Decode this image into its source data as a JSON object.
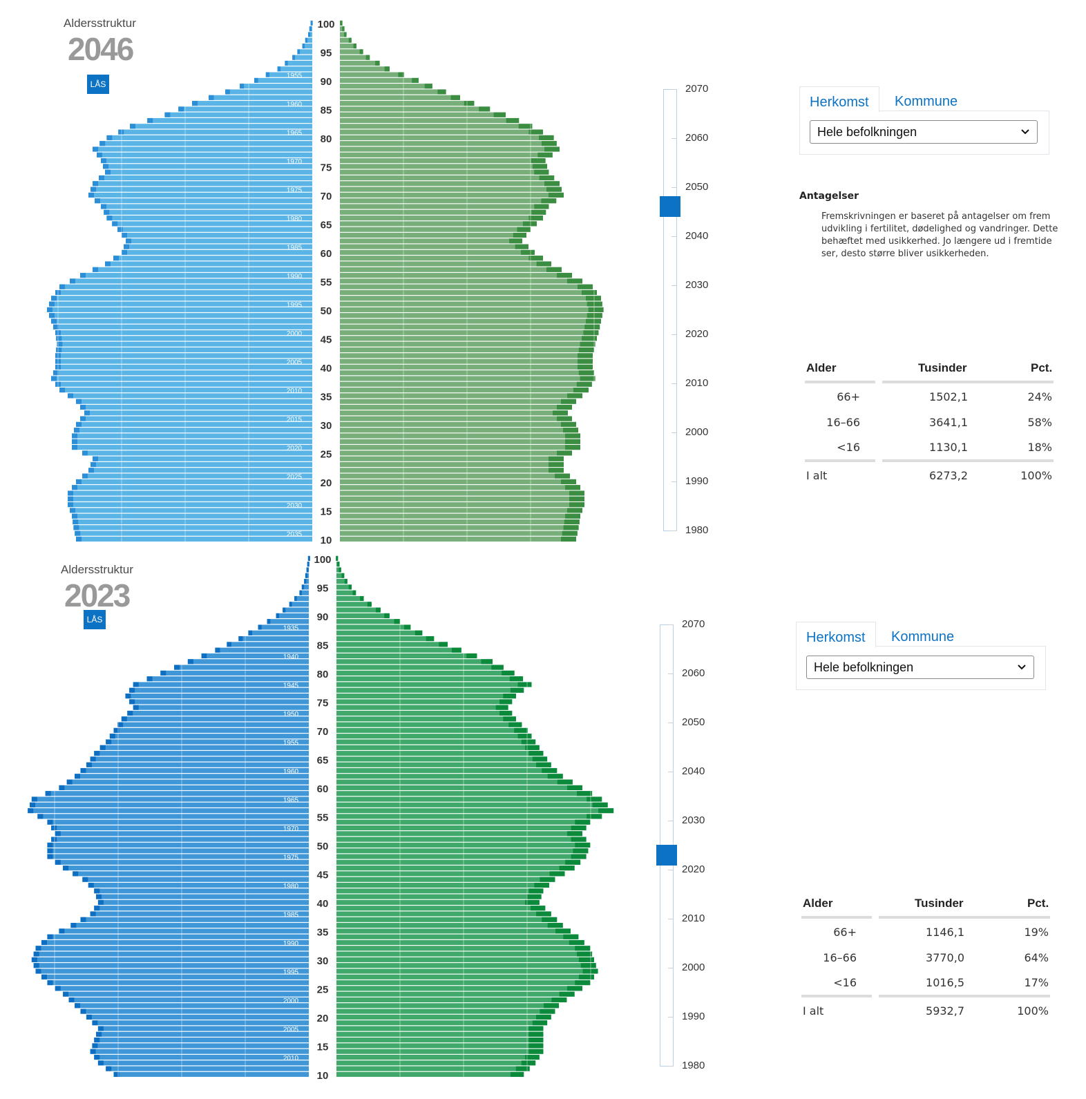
{
  "panels": [
    {
      "id": "top",
      "subtitle": "Aldersstruktur",
      "year": "2046",
      "lock_label": "LÅS",
      "age_labels": [
        "100",
        "95",
        "90",
        "85",
        "80",
        "75",
        "70",
        "65",
        "60",
        "55",
        "50",
        "45",
        "40",
        "35",
        "30",
        "25",
        "20",
        "15",
        "10"
      ],
      "birth_year_labels": [
        "1950",
        "1955",
        "1960",
        "1965",
        "1970",
        "1975",
        "1980",
        "1985",
        "1990",
        "1995",
        "2000",
        "2005",
        "2010",
        "2015",
        "2020",
        "2025",
        "2030",
        "2035"
      ],
      "slider": {
        "ticks": [
          "2070",
          "2060",
          "2050",
          "2040",
          "2030",
          "2020",
          "2010",
          "2000",
          "1990",
          "1980"
        ],
        "value": 2046
      },
      "tabs": {
        "labels": [
          "Herkomst",
          "Kommune"
        ],
        "active": "Herkomst",
        "select_value": "Hele befolkningen"
      },
      "assumptions": {
        "title": "Antagelser",
        "lines": [
          "Fremskrivningen er baseret på antagelser om frem",
          "udvikling i fertilitet, dødelighed og vandringer. Dette",
          "behæftet med usikkerhed. Jo længere ud i fremtide",
          "ser, desto større bliver usikkerheden."
        ]
      },
      "table": {
        "headers": [
          "Alder",
          "Tusinder",
          "Pct."
        ],
        "rows": [
          {
            "age": "66+",
            "thousands": "1502,1",
            "pct": "24%"
          },
          {
            "age": "16–66",
            "thousands": "3641,1",
            "pct": "58%"
          },
          {
            "age": "<16",
            "thousands": "1130,1",
            "pct": "18%"
          }
        ],
        "total": {
          "age": "I alt",
          "thousands": "6273,2",
          "pct": "100%"
        }
      },
      "colors": {
        "men": "#5ab4e5",
        "men_dark": "#2b8ed6",
        "women": "#77ae79",
        "women_dark": "#3b8d41"
      }
    },
    {
      "id": "bottom",
      "subtitle": "Aldersstruktur",
      "year": "2023",
      "lock_label": "LÅS",
      "age_labels": [
        "100",
        "95",
        "90",
        "85",
        "80",
        "75",
        "70",
        "65",
        "60",
        "55",
        "50",
        "45",
        "40",
        "35",
        "30",
        "25",
        "20",
        "15",
        "10"
      ],
      "birth_year_labels": [
        "1935",
        "1940",
        "1945",
        "1950",
        "1955",
        "1960",
        "1965",
        "1970",
        "1975",
        "1980",
        "1985",
        "1990",
        "1995",
        "2000",
        "2005",
        "2010"
      ],
      "slider": {
        "ticks": [
          "2070",
          "2060",
          "2050",
          "2040",
          "2030",
          "2020",
          "2010",
          "2000",
          "1990",
          "1980"
        ],
        "value": 2023
      },
      "tabs": {
        "labels": [
          "Herkomst",
          "Kommune"
        ],
        "active": "Herkomst",
        "select_value": "Hele befolkningen"
      },
      "table": {
        "headers": [
          "Alder",
          "Tusinder",
          "Pct."
        ],
        "rows": [
          {
            "age": "66+",
            "thousands": "1146,1",
            "pct": "19%"
          },
          {
            "age": "16–66",
            "thousands": "3770,0",
            "pct": "64%"
          },
          {
            "age": "<16",
            "thousands": "1016,5",
            "pct": "17%"
          }
        ],
        "total": {
          "age": "I alt",
          "thousands": "5932,7",
          "pct": "100%"
        }
      },
      "colors": {
        "men": "#3f97d8",
        "men_dark": "#0e6fc2",
        "women": "#40a86a",
        "women_dark": "#0a8a3a"
      }
    }
  ],
  "chart_data": [
    {
      "type": "bar",
      "orientation": "horizontal-pyramid",
      "title": "Aldersstruktur 2046",
      "ages": [
        100,
        98,
        96,
        94,
        92,
        90,
        88,
        86,
        84,
        82,
        80,
        78,
        76,
        74,
        72,
        70,
        68,
        66,
        64,
        62,
        60,
        58,
        56,
        54,
        52,
        50,
        48,
        46,
        44,
        42,
        40,
        38,
        36,
        34,
        32,
        30,
        28,
        26,
        24,
        22,
        20,
        18,
        16,
        14,
        12,
        10
      ],
      "men": [
        0.2,
        0.5,
        1.2,
        2.4,
        4.2,
        7.0,
        10.5,
        14.5,
        17.8,
        22.0,
        24.8,
        26.5,
        25.5,
        25.0,
        26.5,
        27.0,
        25.5,
        24.8,
        23.5,
        22.5,
        23.0,
        25.0,
        28.0,
        30.5,
        31.5,
        32.0,
        31.5,
        31.0,
        30.8,
        31.0,
        31.0,
        31.5,
        30.5,
        28.5,
        27.5,
        28.5,
        29.0,
        29.0,
        26.5,
        27.0,
        28.5,
        29.5,
        29.5,
        29.0,
        28.8,
        28.5
      ],
      "women": [
        0.3,
        0.8,
        2.0,
        3.6,
        6.0,
        9.5,
        12.8,
        16.2,
        20.0,
        23.2,
        25.8,
        26.5,
        24.8,
        25.2,
        26.5,
        27.0,
        25.2,
        24.5,
        23.0,
        22.0,
        23.5,
        25.5,
        28.0,
        30.5,
        31.5,
        31.8,
        31.5,
        31.2,
        30.8,
        30.5,
        30.5,
        30.8,
        30.0,
        28.5,
        27.5,
        28.5,
        29.0,
        29.0,
        27.0,
        27.0,
        28.5,
        29.5,
        29.5,
        29.0,
        28.8,
        28.5
      ],
      "xlabel": "",
      "ylabel": ""
    },
    {
      "type": "bar",
      "orientation": "horizontal-pyramid",
      "title": "Aldersstruktur 2023",
      "ages": [
        100,
        98,
        96,
        94,
        92,
        90,
        88,
        86,
        84,
        82,
        80,
        78,
        76,
        74,
        72,
        70,
        68,
        66,
        64,
        62,
        60,
        58,
        56,
        54,
        52,
        50,
        48,
        46,
        44,
        42,
        40,
        38,
        36,
        34,
        32,
        30,
        28,
        26,
        24,
        22,
        20,
        18,
        16,
        14,
        12,
        10
      ],
      "men": [
        0.1,
        0.3,
        0.6,
        1.2,
        2.5,
        4.2,
        6.5,
        9.0,
        12.0,
        15.5,
        19.0,
        22.5,
        23.5,
        22.5,
        24.0,
        25.0,
        26.0,
        27.5,
        28.5,
        30.0,
        32.0,
        35.5,
        36.0,
        33.5,
        32.5,
        33.5,
        33.5,
        31.5,
        29.0,
        27.5,
        27.0,
        28.0,
        30.5,
        33.5,
        35.0,
        35.5,
        35.0,
        33.5,
        31.5,
        30.0,
        28.5,
        27.0,
        27.5,
        28.0,
        27.0,
        25.0
      ],
      "women": [
        0.2,
        0.6,
        1.4,
        2.5,
        4.5,
        6.8,
        9.5,
        12.5,
        16.0,
        20.0,
        22.8,
        25.0,
        23.0,
        22.0,
        23.0,
        24.5,
        25.5,
        26.5,
        27.5,
        29.0,
        31.5,
        34.0,
        35.5,
        32.5,
        31.5,
        32.5,
        32.0,
        30.5,
        28.0,
        26.5,
        26.0,
        27.5,
        29.0,
        31.0,
        32.5,
        33.0,
        33.5,
        32.5,
        30.5,
        28.5,
        27.5,
        26.5,
        26.5,
        26.5,
        25.5,
        24.0
      ]
    }
  ]
}
